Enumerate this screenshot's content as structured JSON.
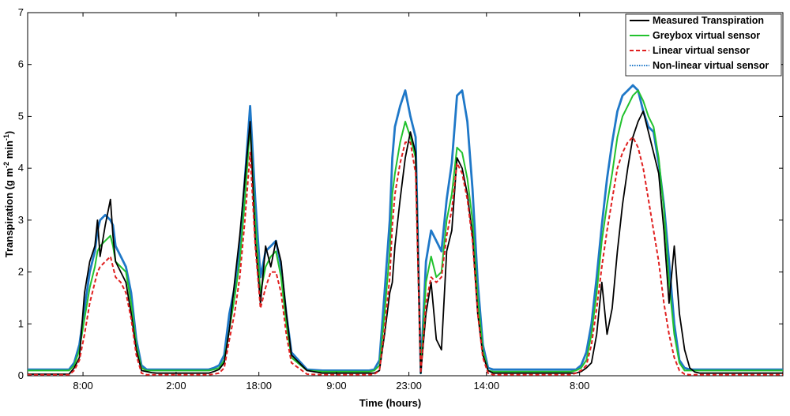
{
  "chart_data": {
    "type": "line",
    "xlabel": "Time (hours)",
    "ylabel_main": "Transpiration (g m",
    "ylabel_sup1": "-2",
    "ylabel_mid": " min",
    "ylabel_sup2": "-1",
    "ylabel_end": ")",
    "ylim": [
      0,
      7
    ],
    "xlim_hours": [
      0,
      146
    ],
    "yticks": [
      "0",
      "1",
      "2",
      "3",
      "4",
      "5",
      "6",
      "7"
    ],
    "xticks": [
      {
        "hour": 10.7,
        "label": "8:00"
      },
      {
        "hour": 28.7,
        "label": "2:00"
      },
      {
        "hour": 44.7,
        "label": "18:00"
      },
      {
        "hour": 59.7,
        "label": "9:00"
      },
      {
        "hour": 73.7,
        "label": "23:00"
      },
      {
        "hour": 88.7,
        "label": "14:00"
      },
      {
        "hour": 106.7,
        "label": "8:00"
      }
    ],
    "grid": false,
    "legend_position": "top-right",
    "series": [
      {
        "name": "Measured Transpiration",
        "color": "#000000",
        "dash": "solid",
        "x": [
          0,
          8,
          9,
          10,
          11,
          12,
          13,
          13.5,
          14,
          15,
          16,
          16.5,
          17,
          18,
          19,
          20,
          21,
          22,
          23,
          24,
          25,
          27,
          30,
          33,
          35,
          36,
          37,
          38,
          39,
          40,
          41,
          42,
          43,
          44,
          45,
          46,
          47,
          48,
          49,
          50,
          51,
          54,
          57,
          60,
          63,
          64,
          65,
          66,
          67,
          68,
          69,
          70,
          70.5,
          71,
          72,
          73,
          74,
          75,
          76,
          77,
          78,
          79,
          80,
          81,
          82,
          83,
          84,
          85,
          86,
          87,
          88,
          89,
          90,
          91,
          92,
          93,
          95,
          100,
          104,
          105,
          106,
          107,
          108,
          109,
          110,
          111,
          112,
          113,
          114,
          115,
          116,
          117,
          118,
          119,
          120,
          121,
          122,
          123,
          124,
          125,
          126,
          127,
          128,
          129,
          130,
          131,
          132,
          134,
          136,
          138,
          139,
          140,
          141,
          142,
          143,
          144,
          145,
          146
        ],
        "y": [
          0.03,
          0.03,
          0.15,
          0.35,
          1.6,
          2.2,
          2.5,
          3.0,
          2.3,
          2.9,
          3.4,
          2.7,
          2.2,
          2.0,
          1.8,
          1.2,
          0.5,
          0.1,
          0.08,
          0.06,
          0.05,
          0.05,
          0.05,
          0.05,
          0.05,
          0.08,
          0.12,
          0.25,
          0.9,
          1.8,
          2.7,
          3.8,
          4.9,
          2.6,
          1.4,
          2.5,
          2.1,
          2.6,
          2.2,
          1.2,
          0.4,
          0.1,
          0.05,
          0.05,
          0.05,
          0.05,
          0.05,
          0.05,
          0.05,
          0.1,
          0.8,
          1.6,
          1.8,
          2.5,
          3.4,
          4.2,
          4.7,
          4.3,
          0.05,
          1.2,
          1.8,
          0.7,
          0.5,
          2.4,
          2.8,
          4.2,
          4.0,
          3.5,
          2.7,
          1.2,
          0.4,
          0.1,
          0.05,
          0.05,
          0.05,
          0.05,
          0.05,
          0.05,
          0.05,
          0.05,
          0.05,
          0.08,
          0.15,
          0.25,
          0.8,
          1.8,
          0.8,
          1.3,
          2.4,
          3.3,
          4.0,
          4.6,
          4.9,
          5.1,
          4.7,
          4.3,
          3.9,
          2.8,
          1.4,
          2.5,
          1.2,
          0.5,
          0.15,
          0.07,
          0.05,
          0.05,
          0.05,
          0.05,
          0.05,
          0.05,
          0.05,
          0.05,
          0.05,
          0.05,
          0.05,
          0.05,
          0.05,
          0.05
        ]
      },
      {
        "name": "Greybox virtual sensor",
        "color": "#22c22e",
        "dash": "solid",
        "x": [
          0,
          8,
          9,
          10,
          11,
          12,
          13,
          13.5,
          14,
          15,
          16,
          16.5,
          17,
          18,
          19,
          20,
          21,
          22,
          23,
          24,
          25,
          27,
          30,
          33,
          35,
          36,
          37,
          38,
          39,
          40,
          41,
          42,
          43,
          44,
          45,
          46,
          47,
          48,
          49,
          50,
          51,
          54,
          57,
          60,
          63,
          64,
          65,
          66,
          67,
          68,
          69,
          70,
          70.5,
          71,
          72,
          73,
          74,
          75,
          76,
          77,
          78,
          79,
          80,
          81,
          82,
          83,
          84,
          85,
          86,
          87,
          88,
          89,
          90,
          91,
          92,
          93,
          95,
          100,
          104,
          105,
          106,
          107,
          108,
          109,
          110,
          111,
          112,
          113,
          114,
          115,
          116,
          117,
          118,
          119,
          120,
          121,
          122,
          123,
          124,
          125,
          126,
          127,
          128,
          129,
          130,
          131,
          132,
          134,
          136,
          138,
          139,
          140,
          141,
          142,
          143,
          144,
          145,
          146
        ],
        "y": [
          0.1,
          0.1,
          0.2,
          0.5,
          1.1,
          1.7,
          2.1,
          2.4,
          2.5,
          2.6,
          2.7,
          2.5,
          2.2,
          2.1,
          2.0,
          1.4,
          0.6,
          0.15,
          0.1,
          0.1,
          0.1,
          0.1,
          0.1,
          0.1,
          0.1,
          0.12,
          0.15,
          0.3,
          0.9,
          1.5,
          2.2,
          3.4,
          4.8,
          3.0,
          1.6,
          2.1,
          2.3,
          2.4,
          1.9,
          1.0,
          0.35,
          0.1,
          0.08,
          0.08,
          0.08,
          0.08,
          0.08,
          0.08,
          0.1,
          0.2,
          1.2,
          2.4,
          3.5,
          3.9,
          4.5,
          4.9,
          4.6,
          4.2,
          0.05,
          1.8,
          2.3,
          1.9,
          2.0,
          3.0,
          3.5,
          4.4,
          4.3,
          3.8,
          3.0,
          1.5,
          0.5,
          0.1,
          0.08,
          0.08,
          0.08,
          0.08,
          0.08,
          0.08,
          0.08,
          0.08,
          0.1,
          0.15,
          0.3,
          0.8,
          1.6,
          2.6,
          3.3,
          3.9,
          4.6,
          5.0,
          5.2,
          5.4,
          5.5,
          5.3,
          5.0,
          4.8,
          4.2,
          3.2,
          1.8,
          0.8,
          0.25,
          0.1,
          0.1,
          0.1,
          0.1,
          0.1,
          0.1,
          0.1,
          0.1,
          0.1,
          0.1,
          0.1,
          0.1,
          0.1,
          0.1,
          0.1,
          0.1,
          0.1
        ]
      },
      {
        "name": "Linear virtual sensor",
        "color": "#e02020",
        "dash": "dashed",
        "x": [
          0,
          8,
          9,
          10,
          11,
          12,
          13,
          13.5,
          14,
          15,
          16,
          16.5,
          17,
          18,
          19,
          20,
          21,
          22,
          23,
          24,
          25,
          27,
          30,
          33,
          35,
          36,
          37,
          38,
          39,
          40,
          41,
          42,
          43,
          44,
          45,
          46,
          47,
          48,
          49,
          50,
          51,
          54,
          57,
          60,
          63,
          64,
          65,
          66,
          67,
          68,
          69,
          70,
          70.5,
          71,
          72,
          73,
          74,
          75,
          76,
          77,
          78,
          79,
          80,
          81,
          82,
          83,
          84,
          85,
          86,
          87,
          88,
          89,
          90,
          91,
          92,
          93,
          95,
          100,
          104,
          105,
          106,
          107,
          108,
          109,
          110,
          111,
          112,
          113,
          114,
          115,
          116,
          117,
          118,
          119,
          120,
          121,
          122,
          123,
          124,
          125,
          126,
          127,
          128,
          129,
          130,
          131,
          132,
          134,
          136,
          138,
          139,
          140,
          141,
          142,
          143,
          144,
          145,
          146
        ],
        "y": [
          0.02,
          0.02,
          0.1,
          0.3,
          0.8,
          1.4,
          1.8,
          2.0,
          2.1,
          2.2,
          2.3,
          2.1,
          1.9,
          1.8,
          1.6,
          1.1,
          0.4,
          0.05,
          0.02,
          0.02,
          0.02,
          0.02,
          0.02,
          0.02,
          0.02,
          0.03,
          0.05,
          0.15,
          0.7,
          1.2,
          1.9,
          3.0,
          4.3,
          2.5,
          1.3,
          1.7,
          2.0,
          2.0,
          1.6,
          0.8,
          0.25,
          0.03,
          0.02,
          0.02,
          0.02,
          0.02,
          0.02,
          0.02,
          0.03,
          0.1,
          0.9,
          1.9,
          2.9,
          3.5,
          4.1,
          4.5,
          4.5,
          3.9,
          0.05,
          1.4,
          1.9,
          1.8,
          1.9,
          2.7,
          3.2,
          4.1,
          3.9,
          3.4,
          2.6,
          1.2,
          0.35,
          0.05,
          0.02,
          0.02,
          0.02,
          0.02,
          0.02,
          0.02,
          0.02,
          0.02,
          0.05,
          0.1,
          0.2,
          0.6,
          1.3,
          2.1,
          2.8,
          3.4,
          4.0,
          4.3,
          4.5,
          4.6,
          4.4,
          4.0,
          3.4,
          2.8,
          2.2,
          1.4,
          0.8,
          0.35,
          0.1,
          0.03,
          0.02,
          0.02,
          0.02,
          0.02,
          0.02,
          0.02,
          0.02,
          0.02,
          0.02,
          0.02,
          0.02,
          0.02,
          0.02,
          0.02,
          0.02,
          0.02
        ]
      },
      {
        "name": "Non-linear virtual sensor",
        "color": "#1f78c8",
        "dash": "dotted",
        "x": [
          0,
          8,
          9,
          10,
          11,
          12,
          13,
          13.5,
          14,
          15,
          16,
          16.5,
          17,
          18,
          19,
          20,
          21,
          22,
          23,
          24,
          25,
          27,
          30,
          33,
          35,
          36,
          37,
          38,
          39,
          40,
          41,
          42,
          43,
          44,
          45,
          46,
          47,
          48,
          49,
          50,
          51,
          54,
          57,
          60,
          63,
          64,
          65,
          66,
          67,
          68,
          69,
          70,
          70.5,
          71,
          72,
          73,
          74,
          75,
          76,
          77,
          78,
          79,
          80,
          81,
          82,
          83,
          84,
          85,
          86,
          87,
          88,
          89,
          90,
          91,
          92,
          93,
          95,
          100,
          104,
          105,
          106,
          107,
          108,
          109,
          110,
          111,
          112,
          113,
          114,
          115,
          116,
          117,
          118,
          119,
          120,
          121,
          122,
          123,
          124,
          125,
          126,
          127,
          128,
          129,
          130,
          131,
          132,
          134,
          136,
          138,
          139,
          140,
          141,
          142,
          143,
          144,
          145,
          146
        ],
        "y": [
          0.12,
          0.12,
          0.25,
          0.6,
          1.3,
          2.0,
          2.4,
          2.8,
          3.0,
          3.1,
          3.0,
          2.9,
          2.5,
          2.3,
          2.1,
          1.6,
          0.7,
          0.2,
          0.12,
          0.12,
          0.12,
          0.12,
          0.12,
          0.12,
          0.12,
          0.15,
          0.2,
          0.4,
          1.2,
          1.7,
          2.5,
          3.8,
          5.2,
          3.4,
          1.9,
          2.4,
          2.5,
          2.6,
          2.1,
          1.2,
          0.45,
          0.12,
          0.1,
          0.1,
          0.1,
          0.1,
          0.1,
          0.1,
          0.12,
          0.3,
          1.6,
          3.0,
          4.2,
          4.8,
          5.2,
          5.5,
          5.0,
          4.6,
          0.05,
          2.2,
          2.8,
          2.6,
          2.4,
          3.4,
          4.1,
          5.4,
          5.5,
          4.9,
          3.6,
          1.8,
          0.6,
          0.15,
          0.12,
          0.12,
          0.12,
          0.12,
          0.12,
          0.12,
          0.12,
          0.12,
          0.12,
          0.2,
          0.45,
          1.0,
          1.9,
          2.9,
          3.8,
          4.5,
          5.1,
          5.4,
          5.5,
          5.6,
          5.5,
          5.1,
          4.8,
          4.7,
          4.1,
          3.3,
          2.2,
          1.0,
          0.3,
          0.15,
          0.12,
          0.12,
          0.12,
          0.12,
          0.12,
          0.12,
          0.12,
          0.12,
          0.12,
          0.12,
          0.12,
          0.12,
          0.12,
          0.12,
          0.12,
          0.12
        ]
      }
    ]
  }
}
